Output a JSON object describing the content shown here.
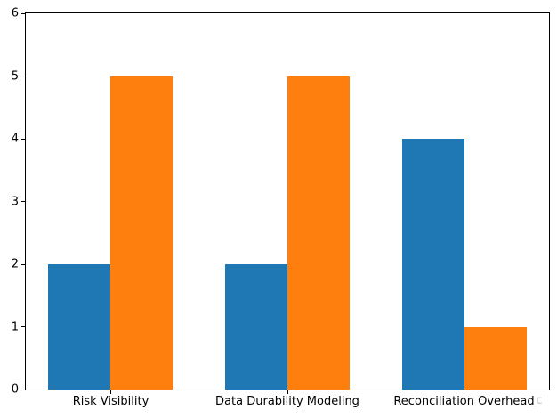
{
  "chart_data": {
    "type": "bar",
    "title": "",
    "xlabel": "",
    "ylabel": "",
    "categories": [
      "Risk Visibility",
      "Data Durability Modeling",
      "Reconciliation Overhead"
    ],
    "series": [
      {
        "name": "blue-series",
        "color": "#1f77b4",
        "values": [
          2,
          2,
          4
        ]
      },
      {
        "name": "orange-series",
        "color": "#ff7f0e",
        "values": [
          5,
          5,
          1
        ]
      }
    ],
    "ylim": [
      0,
      6
    ],
    "yticks": [
      0,
      1,
      2,
      3,
      4,
      5,
      6
    ],
    "grid": false,
    "legend": null,
    "background": "#ffffff",
    "spine_color": "#000000"
  },
  "watermark": {
    "text": "_c"
  }
}
